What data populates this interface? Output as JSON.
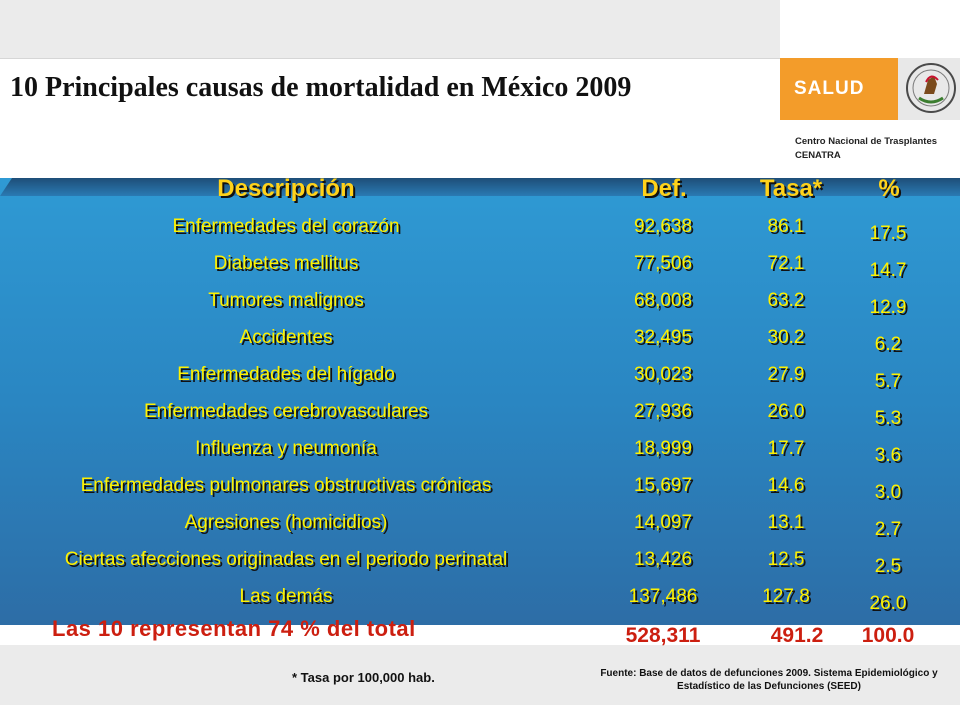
{
  "title": "10 Principales causas de mortalidad en México 2009",
  "logo": {
    "brand": "SALUD",
    "org_line1": "Centro Nacional de Trasplantes",
    "org_line2": "CENATRA"
  },
  "colors": {
    "panel_blue": "#2a86c2",
    "text_yellow": "#fff200",
    "accent_red": "#cc1f10",
    "brand_orange": "#f39c2a"
  },
  "table": {
    "headers": {
      "description": "Descripción",
      "deaths": "Def.",
      "rate": "Tasa*",
      "percent": "%"
    },
    "rows": [
      {
        "description": "Enfermedades del corazón",
        "deaths": "92,638",
        "rate": "86.1",
        "percent": "17.5"
      },
      {
        "description": "Diabetes mellitus",
        "deaths": "77,506",
        "rate": "72.1",
        "percent": "14.7"
      },
      {
        "description": "Tumores malignos",
        "deaths": "68,008",
        "rate": "63.2",
        "percent": "12.9"
      },
      {
        "description": "Accidentes",
        "deaths": "32,495",
        "rate": "30.2",
        "percent": "6.2"
      },
      {
        "description": "Enfermedades del hígado",
        "deaths": "30,023",
        "rate": "27.9",
        "percent": "5.7"
      },
      {
        "description": "Enfermedades cerebrovasculares",
        "deaths": "27,936",
        "rate": "26.0",
        "percent": "5.3"
      },
      {
        "description": "Influenza y neumonía",
        "deaths": "18,999",
        "rate": "17.7",
        "percent": "3.6"
      },
      {
        "description": "Enfermedades pulmonares obstructivas crónicas",
        "deaths": "15,697",
        "rate": "14.6",
        "percent": "3.0"
      },
      {
        "description": "Agresiones (homicidios)",
        "deaths": "14,097",
        "rate": "13.1",
        "percent": "2.7"
      },
      {
        "description": "Ciertas afecciones originadas en el periodo perinatal",
        "deaths": "13,426",
        "rate": "12.5",
        "percent": "2.5"
      },
      {
        "description": "Las demás",
        "deaths": "137,486",
        "rate": "127.8",
        "percent": "26.0"
      }
    ],
    "summary": "Las 10 representan 74 % del total",
    "totals": {
      "deaths": "528,311",
      "rate": "491.2",
      "percent": "100.0"
    }
  },
  "footnote": "* Tasa por 100,000 hab.",
  "source": "Fuente: Base de datos de defunciones 2009. Sistema Epidemiológico y Estadístico de las Defunciones (SEED)"
}
